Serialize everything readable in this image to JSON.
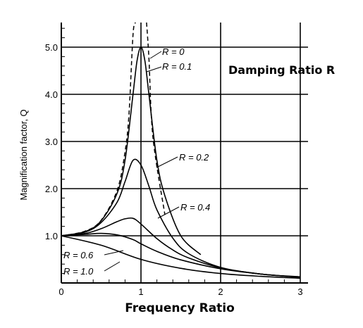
{
  "chart_data": {
    "type": "line",
    "title": "Damping Ratio R",
    "xlabel": "Frequency Ratio",
    "ylabel": "Magnification factor, Q",
    "xlim": [
      0,
      3.1
    ],
    "ylim": [
      0,
      5.5
    ],
    "xticks": [
      "0",
      "1",
      "2",
      "3"
    ],
    "yticks": [
      "1.0",
      "2.0",
      "3.0",
      "4.0",
      "5.0"
    ],
    "grid": true,
    "series": [
      {
        "name": "R = 0",
        "style": "dashed",
        "x": [
          0,
          0.3,
          0.5,
          0.7,
          0.8,
          0.85,
          0.9,
          0.93,
          1.07,
          1.1,
          1.15,
          1.3
        ],
        "y": [
          1.0,
          1.1,
          1.33,
          1.96,
          2.78,
          3.6,
          5.26,
          7.4,
          7.2,
          4.76,
          3.1,
          1.45
        ]
      },
      {
        "name": "R = 0.1",
        "x": [
          0,
          0.3,
          0.5,
          0.7,
          0.8,
          0.9,
          0.95,
          1.0,
          1.05,
          1.1,
          1.2,
          1.3,
          1.5,
          1.75
        ],
        "y": [
          1.0,
          1.09,
          1.32,
          1.9,
          2.6,
          4.0,
          4.7,
          5.0,
          4.7,
          4.0,
          2.6,
          1.85,
          1.0,
          0.6
        ]
      },
      {
        "name": "R = 0.2",
        "x": [
          0,
          0.3,
          0.5,
          0.7,
          0.8,
          0.9,
          1.0,
          1.1,
          1.2,
          1.4,
          1.6,
          2.0,
          2.5,
          3.0
        ],
        "y": [
          1.0,
          1.08,
          1.28,
          1.71,
          2.15,
          2.6,
          2.5,
          2.05,
          1.55,
          0.95,
          0.62,
          0.33,
          0.19,
          0.13
        ]
      },
      {
        "name": "R = 0.4",
        "x": [
          0,
          0.3,
          0.5,
          0.7,
          0.8,
          0.9,
          1.0,
          1.2,
          1.4,
          1.6,
          2.0,
          2.5,
          3.0
        ],
        "y": [
          1.0,
          1.05,
          1.15,
          1.3,
          1.36,
          1.37,
          1.25,
          0.94,
          0.7,
          0.53,
          0.32,
          0.19,
          0.12
        ]
      },
      {
        "name": "R = 0.6",
        "x": [
          0,
          0.3,
          0.5,
          0.7,
          0.9,
          1.0,
          1.2,
          1.5,
          2.0,
          2.5,
          3.0
        ],
        "y": [
          1.0,
          1.03,
          1.05,
          1.02,
          0.92,
          0.83,
          0.67,
          0.49,
          0.3,
          0.19,
          0.12
        ]
      },
      {
        "name": "R = 1.0",
        "x": [
          0,
          0.5,
          1.0,
          1.5,
          2.0,
          2.5,
          3.0
        ],
        "y": [
          1.0,
          0.8,
          0.5,
          0.31,
          0.2,
          0.14,
          0.1
        ]
      }
    ],
    "annotations": [
      "R = 0",
      "R = 0.1",
      "R = 0.2",
      "R = 0.4",
      "R = 0.6",
      "R = 1.0"
    ]
  }
}
